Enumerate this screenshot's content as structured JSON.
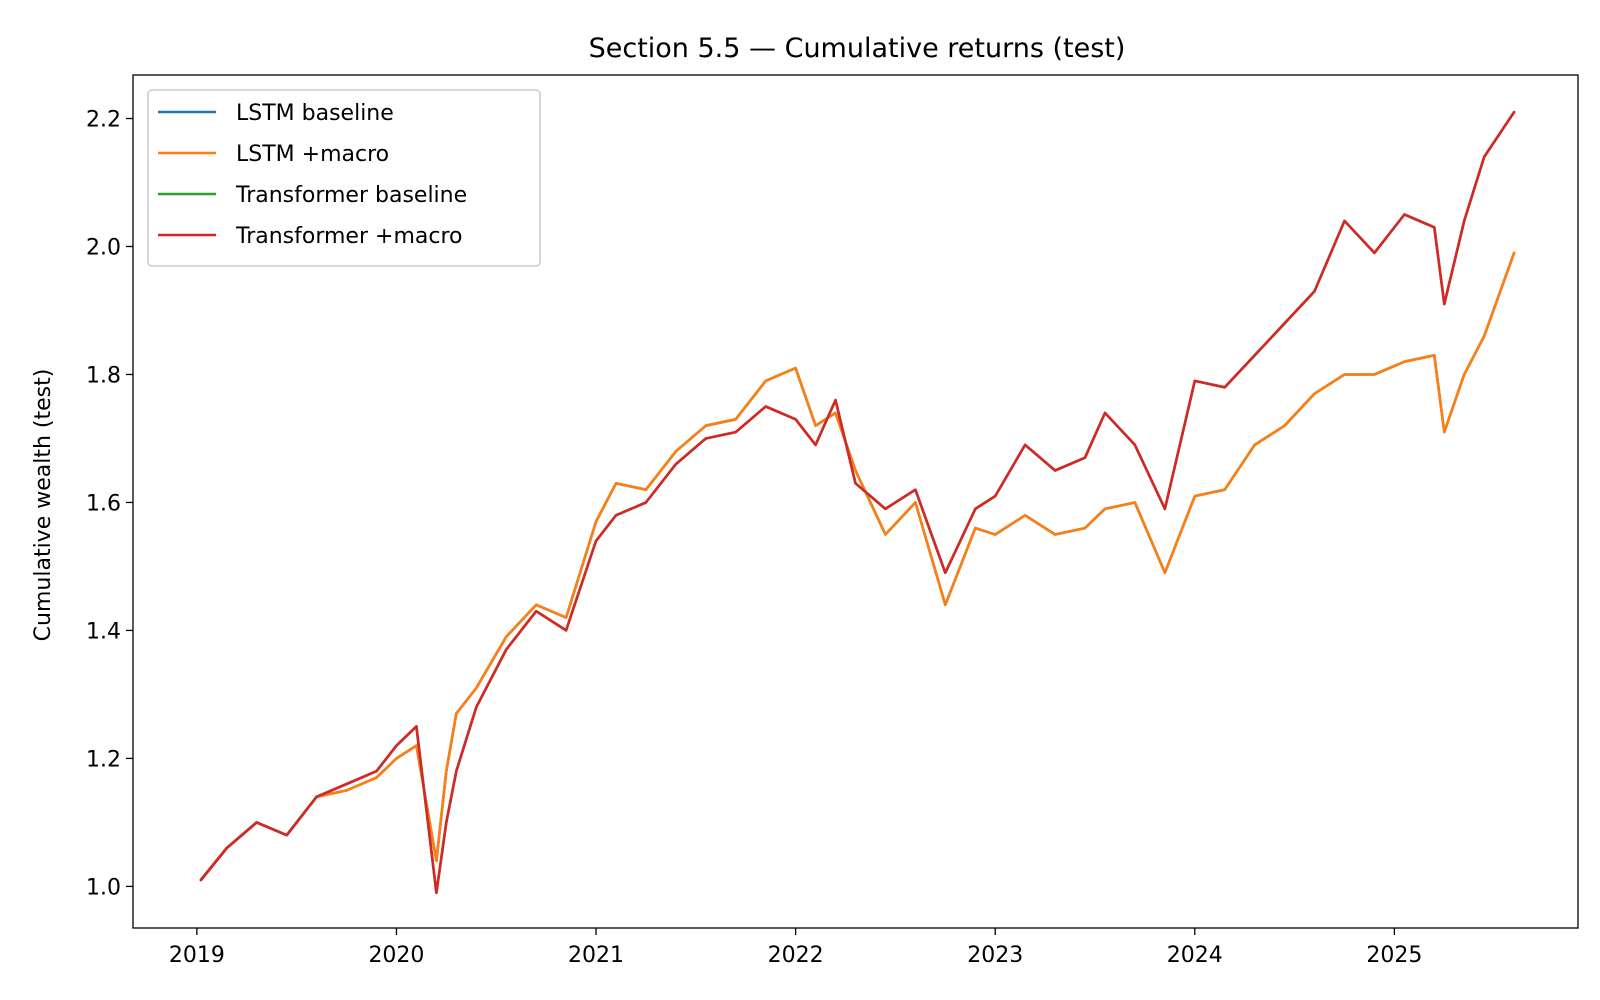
{
  "chart_data": {
    "type": "line",
    "title": "Section 5.5 — Cumulative returns (test)",
    "xlabel": "",
    "ylabel": "Cumulative wealth (test)",
    "xlim": [
      2018.68,
      2025.92
    ],
    "ylim": [
      0.935,
      2.268
    ],
    "x_ticks": [
      2019,
      2020,
      2021,
      2022,
      2023,
      2024,
      2025
    ],
    "x_tick_labels": [
      "2019",
      "2020",
      "2021",
      "2022",
      "2023",
      "2024",
      "2025"
    ],
    "y_ticks": [
      1.0,
      1.2,
      1.4,
      1.6,
      1.8,
      2.0,
      2.2
    ],
    "y_tick_labels": [
      "1.0",
      "1.2",
      "1.4",
      "1.6",
      "1.8",
      "2.0",
      "2.2"
    ],
    "grid": false,
    "legend_position": "top-left",
    "series": [
      {
        "name": "LSTM baseline",
        "color": "#1f77b4",
        "x": [
          2019.02,
          2019.15,
          2019.3,
          2019.45,
          2019.6,
          2019.75,
          2019.9,
          2020.0,
          2020.1,
          2020.15,
          2020.2,
          2020.25,
          2020.3,
          2020.4,
          2020.55,
          2020.7,
          2020.85,
          2021.0,
          2021.1,
          2021.25,
          2021.4,
          2021.55,
          2021.7,
          2021.85,
          2022.0,
          2022.1,
          2022.2,
          2022.3,
          2022.45,
          2022.6,
          2022.75,
          2022.9,
          2023.0,
          2023.15,
          2023.3,
          2023.45,
          2023.55,
          2023.7,
          2023.85,
          2024.0,
          2024.15,
          2024.3,
          2024.45,
          2024.6,
          2024.75,
          2024.9,
          2025.05,
          2025.2,
          2025.25,
          2025.35,
          2025.45,
          2025.6
        ],
        "values": [
          1.01,
          1.06,
          1.1,
          1.08,
          1.14,
          1.15,
          1.17,
          1.2,
          1.22,
          1.13,
          1.04,
          1.18,
          1.27,
          1.31,
          1.39,
          1.44,
          1.42,
          1.57,
          1.63,
          1.62,
          1.68,
          1.72,
          1.73,
          1.79,
          1.81,
          1.72,
          1.74,
          1.65,
          1.55,
          1.6,
          1.44,
          1.56,
          1.55,
          1.58,
          1.55,
          1.56,
          1.59,
          1.6,
          1.49,
          1.61,
          1.62,
          1.69,
          1.72,
          1.77,
          1.8,
          1.8,
          1.82,
          1.83,
          1.71,
          1.8,
          1.86,
          1.99
        ]
      },
      {
        "name": "LSTM +macro",
        "color": "#ff7f0e",
        "x": [
          2019.02,
          2019.15,
          2019.3,
          2019.45,
          2019.6,
          2019.75,
          2019.9,
          2020.0,
          2020.1,
          2020.15,
          2020.2,
          2020.25,
          2020.3,
          2020.4,
          2020.55,
          2020.7,
          2020.85,
          2021.0,
          2021.1,
          2021.25,
          2021.4,
          2021.55,
          2021.7,
          2021.85,
          2022.0,
          2022.1,
          2022.2,
          2022.3,
          2022.45,
          2022.6,
          2022.75,
          2022.9,
          2023.0,
          2023.15,
          2023.3,
          2023.45,
          2023.55,
          2023.7,
          2023.85,
          2024.0,
          2024.15,
          2024.3,
          2024.45,
          2024.6,
          2024.75,
          2024.9,
          2025.05,
          2025.2,
          2025.25,
          2025.35,
          2025.45,
          2025.6
        ],
        "values": [
          1.01,
          1.06,
          1.1,
          1.08,
          1.14,
          1.15,
          1.17,
          1.2,
          1.22,
          1.13,
          1.04,
          1.18,
          1.27,
          1.31,
          1.39,
          1.44,
          1.42,
          1.57,
          1.63,
          1.62,
          1.68,
          1.72,
          1.73,
          1.79,
          1.81,
          1.72,
          1.74,
          1.65,
          1.55,
          1.6,
          1.44,
          1.56,
          1.55,
          1.58,
          1.55,
          1.56,
          1.59,
          1.6,
          1.49,
          1.61,
          1.62,
          1.69,
          1.72,
          1.77,
          1.8,
          1.8,
          1.82,
          1.83,
          1.71,
          1.8,
          1.86,
          1.99
        ]
      },
      {
        "name": "Transformer baseline",
        "color": "#2ca02c",
        "x": [
          2019.02,
          2019.15,
          2019.3,
          2019.45,
          2019.6,
          2019.75,
          2019.9,
          2020.0,
          2020.1,
          2020.15,
          2020.2,
          2020.25,
          2020.3,
          2020.4,
          2020.55,
          2020.7,
          2020.85,
          2021.0,
          2021.1,
          2021.25,
          2021.4,
          2021.55,
          2021.7,
          2021.85,
          2022.0,
          2022.1,
          2022.2,
          2022.3,
          2022.45,
          2022.6,
          2022.75,
          2022.9,
          2023.0,
          2023.15,
          2023.3,
          2023.45,
          2023.55,
          2023.7,
          2023.85,
          2024.0,
          2024.15,
          2024.3,
          2024.45,
          2024.6,
          2024.75,
          2024.9,
          2025.05,
          2025.2,
          2025.25,
          2025.35,
          2025.45,
          2025.6
        ],
        "values": [
          1.01,
          1.06,
          1.1,
          1.08,
          1.14,
          1.16,
          1.18,
          1.22,
          1.25,
          1.12,
          0.99,
          1.1,
          1.18,
          1.28,
          1.37,
          1.43,
          1.4,
          1.54,
          1.58,
          1.6,
          1.66,
          1.7,
          1.71,
          1.75,
          1.73,
          1.69,
          1.76,
          1.63,
          1.59,
          1.62,
          1.49,
          1.59,
          1.61,
          1.69,
          1.65,
          1.67,
          1.74,
          1.69,
          1.59,
          1.79,
          1.78,
          1.83,
          1.88,
          1.93,
          2.04,
          1.99,
          2.05,
          2.03,
          1.91,
          2.04,
          2.14,
          2.21
        ]
      },
      {
        "name": "Transformer +macro",
        "color": "#d62728",
        "x": [
          2019.02,
          2019.15,
          2019.3,
          2019.45,
          2019.6,
          2019.75,
          2019.9,
          2020.0,
          2020.1,
          2020.15,
          2020.2,
          2020.25,
          2020.3,
          2020.4,
          2020.55,
          2020.7,
          2020.85,
          2021.0,
          2021.1,
          2021.25,
          2021.4,
          2021.55,
          2021.7,
          2021.85,
          2022.0,
          2022.1,
          2022.2,
          2022.3,
          2022.45,
          2022.6,
          2022.75,
          2022.9,
          2023.0,
          2023.15,
          2023.3,
          2023.45,
          2023.55,
          2023.7,
          2023.85,
          2024.0,
          2024.15,
          2024.3,
          2024.45,
          2024.6,
          2024.75,
          2024.9,
          2025.05,
          2025.2,
          2025.25,
          2025.35,
          2025.45,
          2025.6
        ],
        "values": [
          1.01,
          1.06,
          1.1,
          1.08,
          1.14,
          1.16,
          1.18,
          1.22,
          1.25,
          1.12,
          0.99,
          1.1,
          1.18,
          1.28,
          1.37,
          1.43,
          1.4,
          1.54,
          1.58,
          1.6,
          1.66,
          1.7,
          1.71,
          1.75,
          1.73,
          1.69,
          1.76,
          1.63,
          1.59,
          1.62,
          1.49,
          1.59,
          1.61,
          1.69,
          1.65,
          1.67,
          1.74,
          1.69,
          1.59,
          1.79,
          1.78,
          1.83,
          1.88,
          1.93,
          2.04,
          1.99,
          2.05,
          2.03,
          1.91,
          2.04,
          2.14,
          2.21
        ]
      }
    ]
  }
}
